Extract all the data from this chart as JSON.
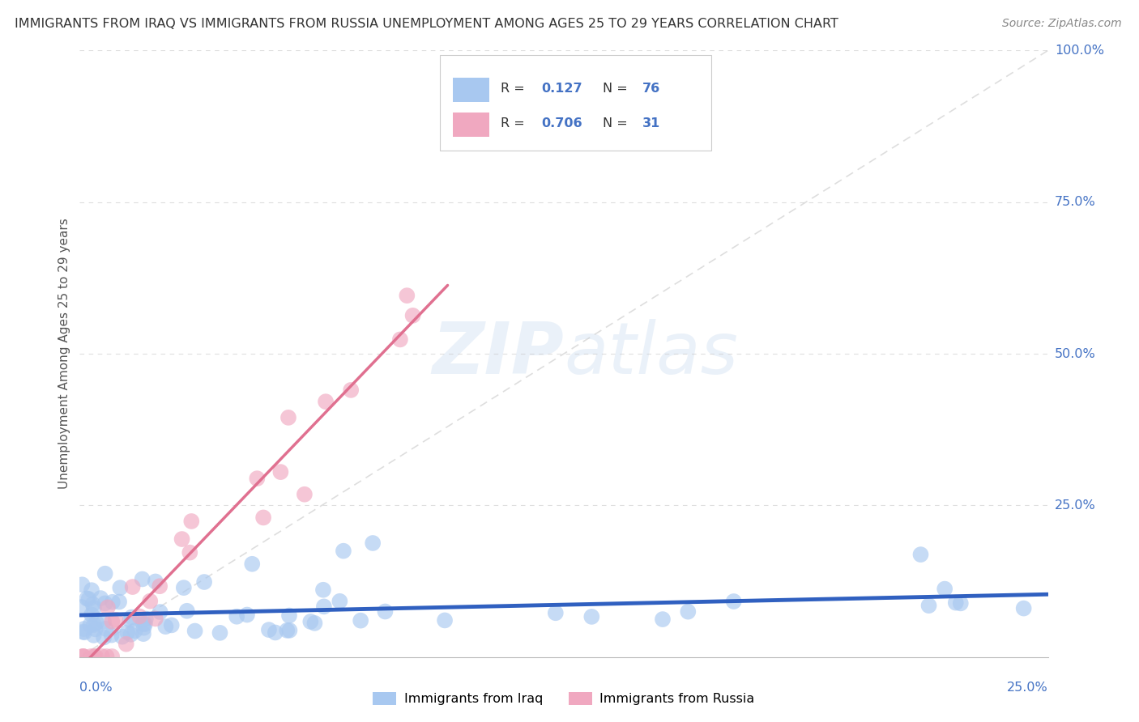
{
  "title": "IMMIGRANTS FROM IRAQ VS IMMIGRANTS FROM RUSSIA UNEMPLOYMENT AMONG AGES 25 TO 29 YEARS CORRELATION CHART",
  "source": "Source: ZipAtlas.com",
  "ylabel": "Unemployment Among Ages 25 to 29 years",
  "xlim": [
    0,
    0.25
  ],
  "ylim": [
    0,
    1.0
  ],
  "iraq_color": "#a8c8f0",
  "russia_color": "#f0a8c0",
  "iraq_line_color": "#3060c0",
  "russia_line_color": "#e07090",
  "diag_line_color": "#c8c8c8",
  "legend_r_n_color": "#4472c4",
  "legend_label_color": "#333333",
  "watermark_text": "ZIPAtlas",
  "watermark_color": "#d0e4f8",
  "background_color": "#ffffff",
  "grid_color": "#d0d0d0",
  "axis_label_color": "#4472c4",
  "title_color": "#333333",
  "source_color": "#888888",
  "ytick_vals": [
    0.25,
    0.5,
    0.75,
    1.0
  ],
  "ytick_labels": [
    "25.0%",
    "50.0%",
    "75.0%",
    "100.0%"
  ],
  "iraq_scatter_seed": 42,
  "russia_scatter_seed": 7
}
